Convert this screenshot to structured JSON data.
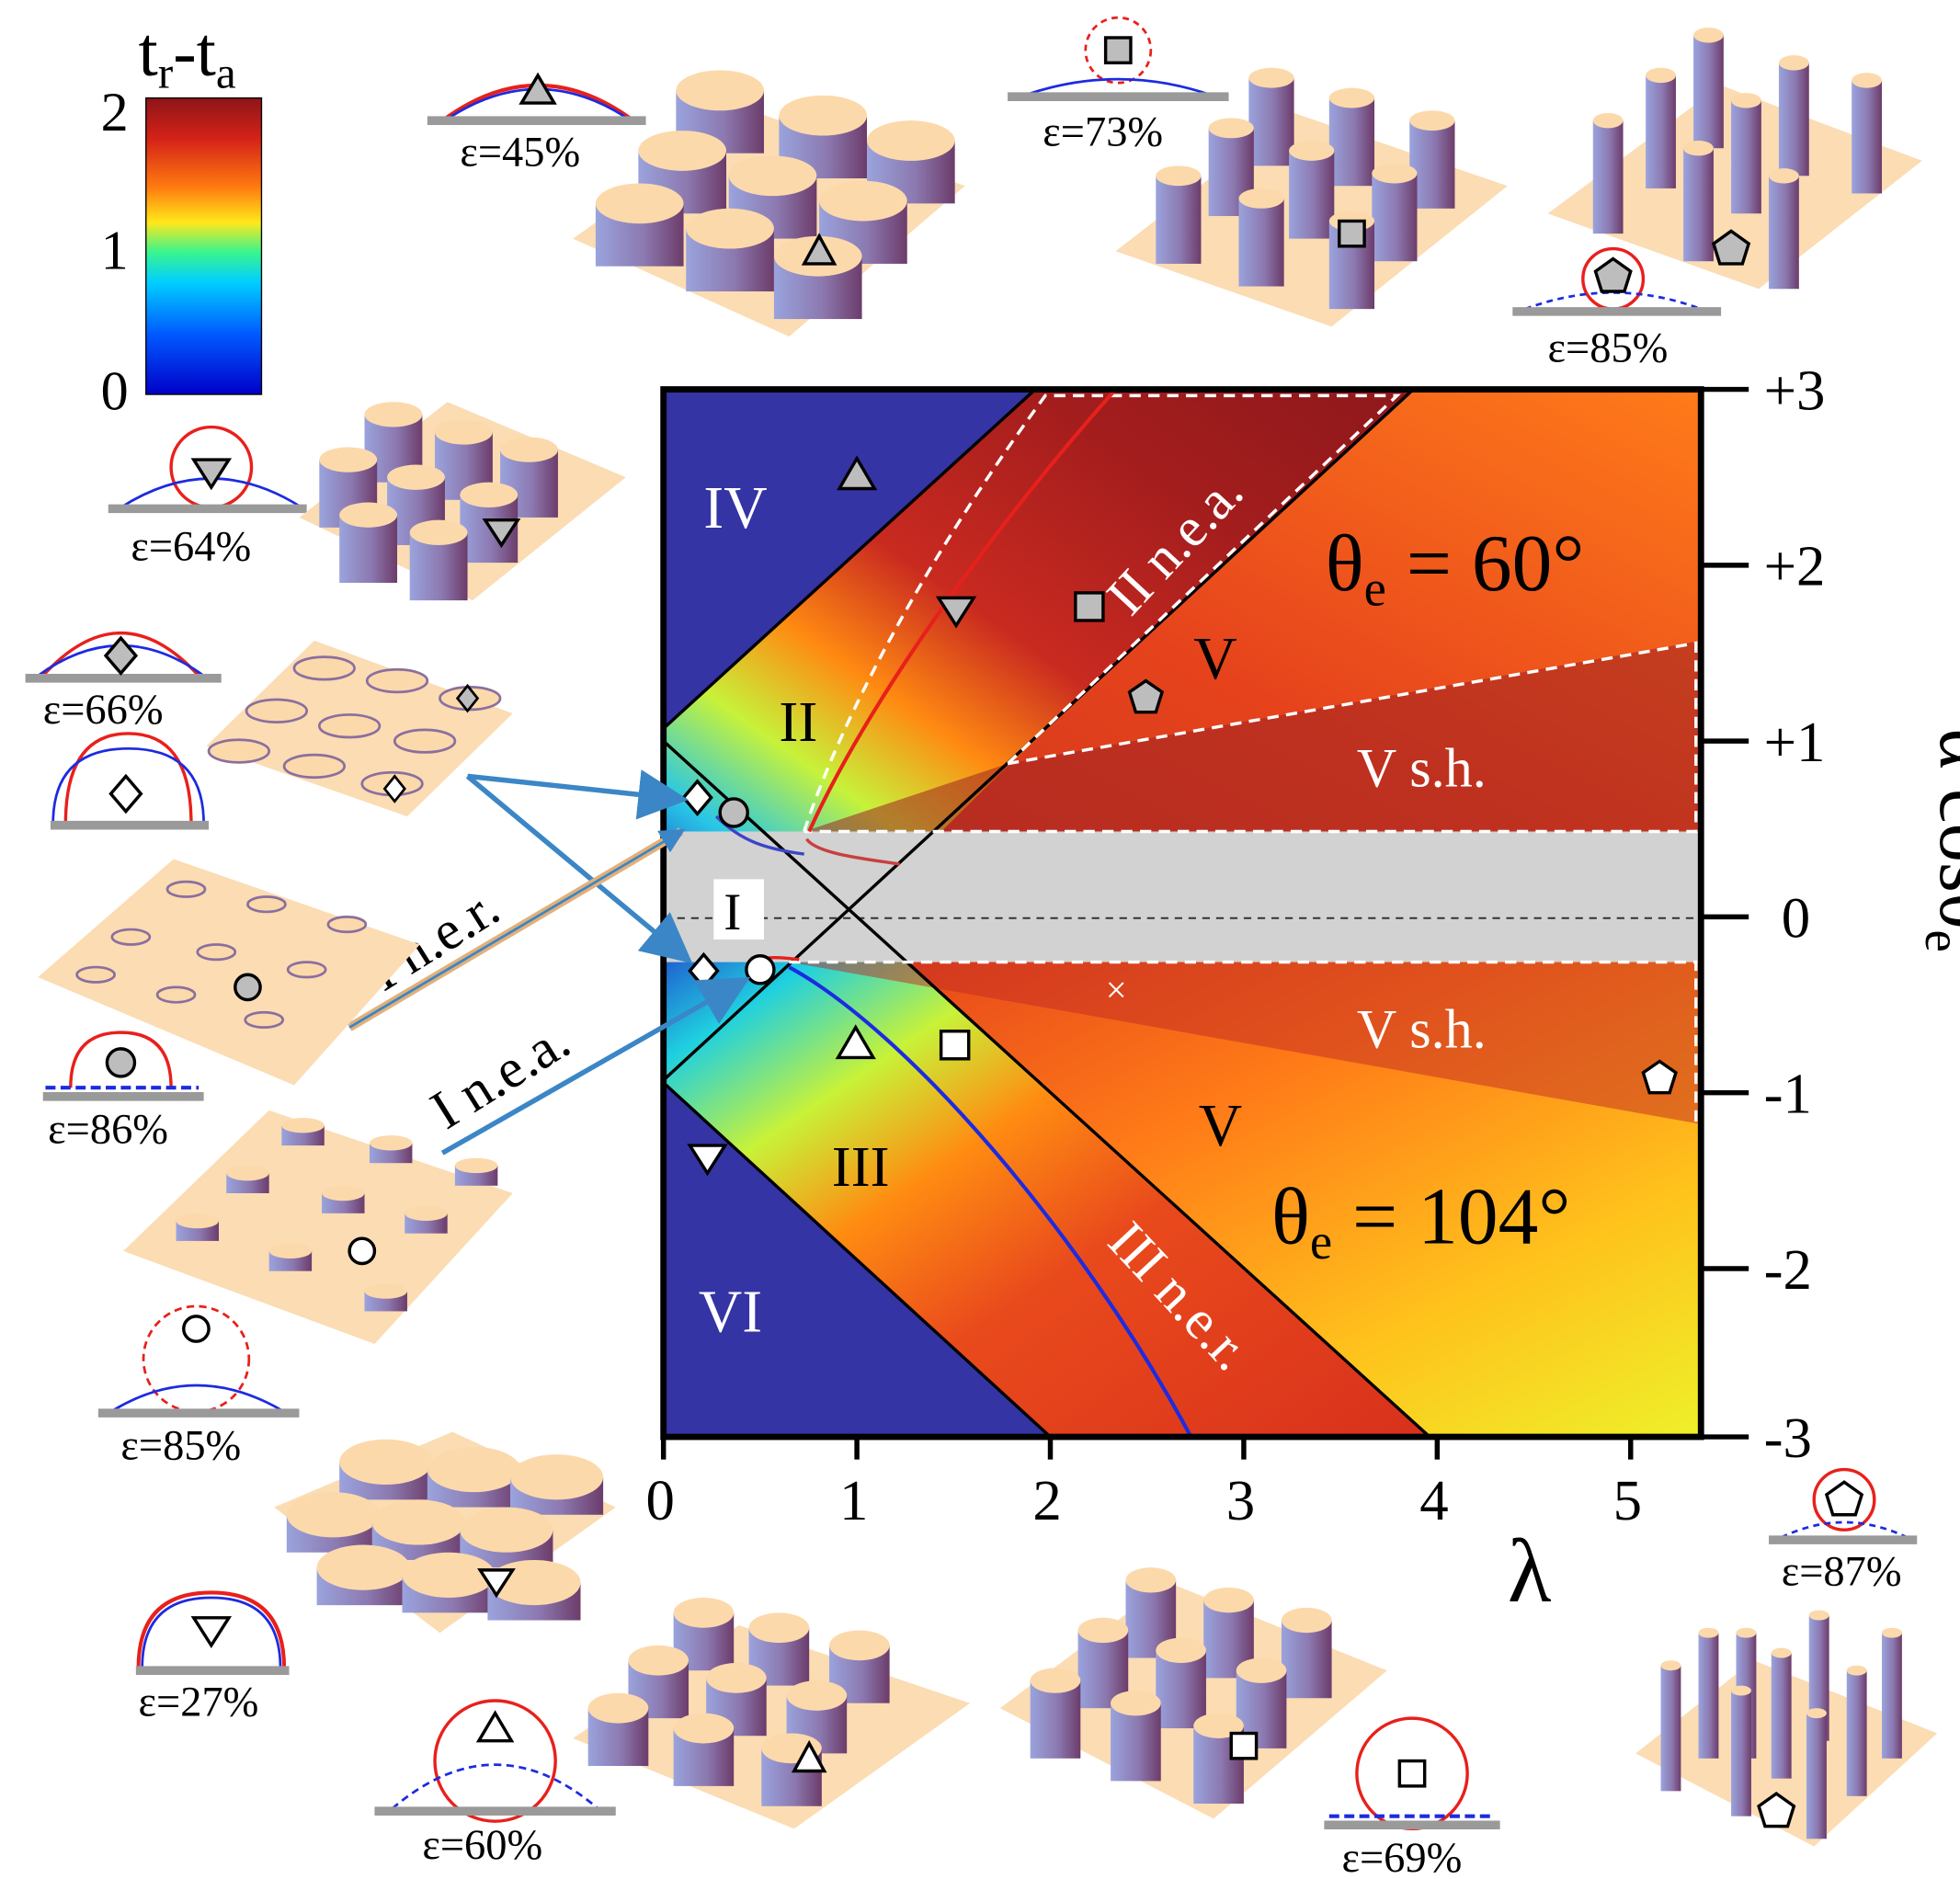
{
  "colorbar": {
    "title_main": "t",
    "title_sub_r": "r",
    "title_dash": "-t",
    "title_sub_a": "a",
    "ticks": [
      "2",
      "1",
      "0"
    ],
    "colors": [
      "#8e1419",
      "#d52318",
      "#ff7a10",
      "#ffe81a",
      "#39f58d",
      "#00d0ff",
      "#0058ff",
      "#0000c8"
    ]
  },
  "axes": {
    "x_label": "λ",
    "y_label_main": "α cosθ",
    "y_label_sub": "e",
    "x_ticks": [
      "0",
      "1",
      "2",
      "3",
      "4",
      "5"
    ],
    "y_ticks": [
      "+3",
      "+2",
      "+1",
      "0",
      "-1",
      "-2",
      "-3"
    ]
  },
  "regions": {
    "iv": "IV",
    "ii": "II",
    "ii_nea": "II n.e.a.",
    "v_top": "V",
    "v_sh_top": "V s.h.",
    "i": "I",
    "v_sh_bottom": "V s.h.",
    "v_bottom": "V",
    "iii": "III",
    "iii_ner": "III n.e.r.",
    "vi": "VI",
    "theta_top_prefix": "θ",
    "theta_top_sub": "e",
    "theta_top_value": " = 60°",
    "theta_bottom_prefix": "θ",
    "theta_bottom_sub": "e",
    "theta_bottom_value": " = 104°",
    "cross": "×"
  },
  "annotations": {
    "i_ner": "I n.e.r.",
    "i_nea": "I n.e.a."
  },
  "insets": {
    "eps_45": "ε=45%",
    "eps_73": "ε=73%",
    "eps_85_top": "ε=85%",
    "eps_64": "ε=64%",
    "eps_66": "ε=66%",
    "eps_86": "ε=86%",
    "eps_85_left": "ε=85%",
    "eps_27": "ε=27%",
    "eps_60": "ε=60%",
    "eps_69": "ε=69%",
    "eps_87": "ε=87%"
  },
  "colors": {
    "blue_region": "#3434a4",
    "gray_band": "#d2d2d2",
    "plate": "#fbdcb3",
    "pillar_top": "#fcd9ab",
    "red_curve": "#e8201c",
    "blue_curve": "#1c2be0",
    "arrow": "#3b86c6"
  }
}
